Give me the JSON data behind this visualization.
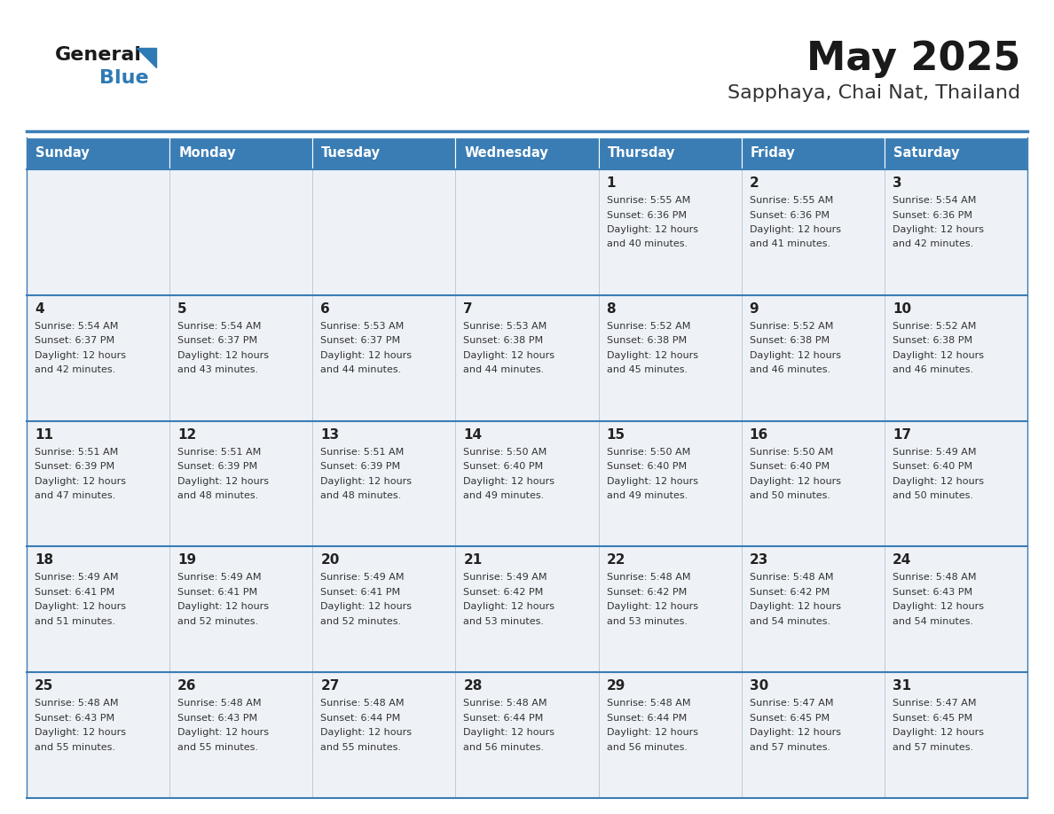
{
  "title": "May 2025",
  "subtitle": "Sapphaya, Chai Nat, Thailand",
  "days_of_week": [
    "Sunday",
    "Monday",
    "Tuesday",
    "Wednesday",
    "Thursday",
    "Friday",
    "Saturday"
  ],
  "header_bg": "#3a7db5",
  "header_text": "#ffffff",
  "cell_bg": "#eef2f7",
  "cell_border_color": "#3a7db5",
  "cell_border_light": "#b0c4d8",
  "day_number_color": "#222222",
  "text_color": "#333333",
  "title_color": "#1a1a1a",
  "subtitle_color": "#333333",
  "logo_general_color": "#1a1a1a",
  "logo_blue_color": "#2e7ab5",
  "logo_triangle_color": "#2e7ab5",
  "calendar_data": [
    [
      {
        "day": "",
        "sunrise": "",
        "sunset": "",
        "daylight": ""
      },
      {
        "day": "",
        "sunrise": "",
        "sunset": "",
        "daylight": ""
      },
      {
        "day": "",
        "sunrise": "",
        "sunset": "",
        "daylight": ""
      },
      {
        "day": "",
        "sunrise": "",
        "sunset": "",
        "daylight": ""
      },
      {
        "day": "1",
        "sunrise": "5:55 AM",
        "sunset": "6:36 PM",
        "daylight": "12 hours and 40 minutes."
      },
      {
        "day": "2",
        "sunrise": "5:55 AM",
        "sunset": "6:36 PM",
        "daylight": "12 hours and 41 minutes."
      },
      {
        "day": "3",
        "sunrise": "5:54 AM",
        "sunset": "6:36 PM",
        "daylight": "12 hours and 42 minutes."
      }
    ],
    [
      {
        "day": "4",
        "sunrise": "5:54 AM",
        "sunset": "6:37 PM",
        "daylight": "12 hours and 42 minutes."
      },
      {
        "day": "5",
        "sunrise": "5:54 AM",
        "sunset": "6:37 PM",
        "daylight": "12 hours and 43 minutes."
      },
      {
        "day": "6",
        "sunrise": "5:53 AM",
        "sunset": "6:37 PM",
        "daylight": "12 hours and 44 minutes."
      },
      {
        "day": "7",
        "sunrise": "5:53 AM",
        "sunset": "6:38 PM",
        "daylight": "12 hours and 44 minutes."
      },
      {
        "day": "8",
        "sunrise": "5:52 AM",
        "sunset": "6:38 PM",
        "daylight": "12 hours and 45 minutes."
      },
      {
        "day": "9",
        "sunrise": "5:52 AM",
        "sunset": "6:38 PM",
        "daylight": "12 hours and 46 minutes."
      },
      {
        "day": "10",
        "sunrise": "5:52 AM",
        "sunset": "6:38 PM",
        "daylight": "12 hours and 46 minutes."
      }
    ],
    [
      {
        "day": "11",
        "sunrise": "5:51 AM",
        "sunset": "6:39 PM",
        "daylight": "12 hours and 47 minutes."
      },
      {
        "day": "12",
        "sunrise": "5:51 AM",
        "sunset": "6:39 PM",
        "daylight": "12 hours and 48 minutes."
      },
      {
        "day": "13",
        "sunrise": "5:51 AM",
        "sunset": "6:39 PM",
        "daylight": "12 hours and 48 minutes."
      },
      {
        "day": "14",
        "sunrise": "5:50 AM",
        "sunset": "6:40 PM",
        "daylight": "12 hours and 49 minutes."
      },
      {
        "day": "15",
        "sunrise": "5:50 AM",
        "sunset": "6:40 PM",
        "daylight": "12 hours and 49 minutes."
      },
      {
        "day": "16",
        "sunrise": "5:50 AM",
        "sunset": "6:40 PM",
        "daylight": "12 hours and 50 minutes."
      },
      {
        "day": "17",
        "sunrise": "5:49 AM",
        "sunset": "6:40 PM",
        "daylight": "12 hours and 50 minutes."
      }
    ],
    [
      {
        "day": "18",
        "sunrise": "5:49 AM",
        "sunset": "6:41 PM",
        "daylight": "12 hours and 51 minutes."
      },
      {
        "day": "19",
        "sunrise": "5:49 AM",
        "sunset": "6:41 PM",
        "daylight": "12 hours and 52 minutes."
      },
      {
        "day": "20",
        "sunrise": "5:49 AM",
        "sunset": "6:41 PM",
        "daylight": "12 hours and 52 minutes."
      },
      {
        "day": "21",
        "sunrise": "5:49 AM",
        "sunset": "6:42 PM",
        "daylight": "12 hours and 53 minutes."
      },
      {
        "day": "22",
        "sunrise": "5:48 AM",
        "sunset": "6:42 PM",
        "daylight": "12 hours and 53 minutes."
      },
      {
        "day": "23",
        "sunrise": "5:48 AM",
        "sunset": "6:42 PM",
        "daylight": "12 hours and 54 minutes."
      },
      {
        "day": "24",
        "sunrise": "5:48 AM",
        "sunset": "6:43 PM",
        "daylight": "12 hours and 54 minutes."
      }
    ],
    [
      {
        "day": "25",
        "sunrise": "5:48 AM",
        "sunset": "6:43 PM",
        "daylight": "12 hours and 55 minutes."
      },
      {
        "day": "26",
        "sunrise": "5:48 AM",
        "sunset": "6:43 PM",
        "daylight": "12 hours and 55 minutes."
      },
      {
        "day": "27",
        "sunrise": "5:48 AM",
        "sunset": "6:44 PM",
        "daylight": "12 hours and 55 minutes."
      },
      {
        "day": "28",
        "sunrise": "5:48 AM",
        "sunset": "6:44 PM",
        "daylight": "12 hours and 56 minutes."
      },
      {
        "day": "29",
        "sunrise": "5:48 AM",
        "sunset": "6:44 PM",
        "daylight": "12 hours and 56 minutes."
      },
      {
        "day": "30",
        "sunrise": "5:47 AM",
        "sunset": "6:45 PM",
        "daylight": "12 hours and 57 minutes."
      },
      {
        "day": "31",
        "sunrise": "5:47 AM",
        "sunset": "6:45 PM",
        "daylight": "12 hours and 57 minutes."
      }
    ]
  ]
}
